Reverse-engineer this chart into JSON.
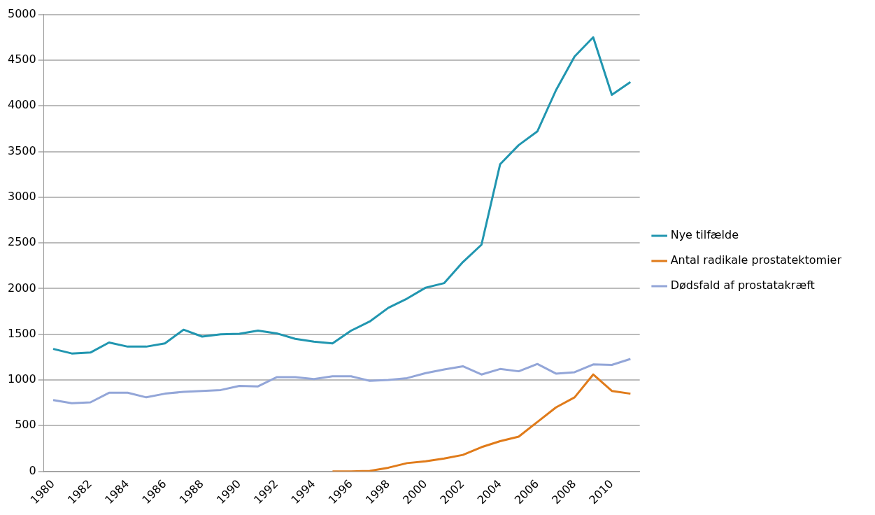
{
  "chart_data": {
    "type": "line",
    "categories": [
      "1980",
      null,
      "1982",
      null,
      "1984",
      null,
      "1986",
      null,
      "1988",
      null,
      "1990",
      null,
      "1992",
      null,
      "1994",
      null,
      "1996",
      null,
      "1998",
      null,
      "2000",
      null,
      "2002",
      null,
      "2004",
      null,
      "2006",
      null,
      "2008",
      null,
      "2010",
      null
    ],
    "series": [
      {
        "name": "Nye tilfælde",
        "color": "#2196b0",
        "values": [
          1340,
          1290,
          1300,
          1410,
          1365,
          1365,
          1400,
          1550,
          1475,
          1500,
          1505,
          1540,
          1510,
          1450,
          1420,
          1400,
          1540,
          1640,
          1790,
          1890,
          2010,
          2060,
          2290,
          2480,
          3360,
          3570,
          3720,
          4170,
          4540,
          4750,
          4120,
          4260
        ]
      },
      {
        "name": "Antal radikale prostatektomier",
        "color": "#e07b1a",
        "values": [
          null,
          null,
          null,
          null,
          null,
          null,
          null,
          null,
          null,
          null,
          null,
          null,
          null,
          null,
          null,
          0,
          0,
          5,
          40,
          90,
          110,
          140,
          180,
          265,
          330,
          380,
          540,
          700,
          810,
          1060,
          880,
          850
        ]
      },
      {
        "name": "Dødsfald af prostatakræft",
        "color": "#93a6d8",
        "values": [
          780,
          745,
          755,
          860,
          860,
          810,
          850,
          870,
          880,
          890,
          935,
          930,
          1030,
          1030,
          1010,
          1040,
          1040,
          990,
          1000,
          1020,
          1075,
          1115,
          1150,
          1060,
          1120,
          1095,
          1175,
          1070,
          1085,
          1170,
          1165,
          1230
        ]
      }
    ],
    "ylim": [
      0,
      5000
    ],
    "yticks": [
      0,
      500,
      1000,
      1500,
      2000,
      2500,
      3000,
      3500,
      4000,
      4500,
      5000
    ],
    "grid": "y",
    "legend": "right",
    "marker": "none",
    "line_style": "solid"
  }
}
